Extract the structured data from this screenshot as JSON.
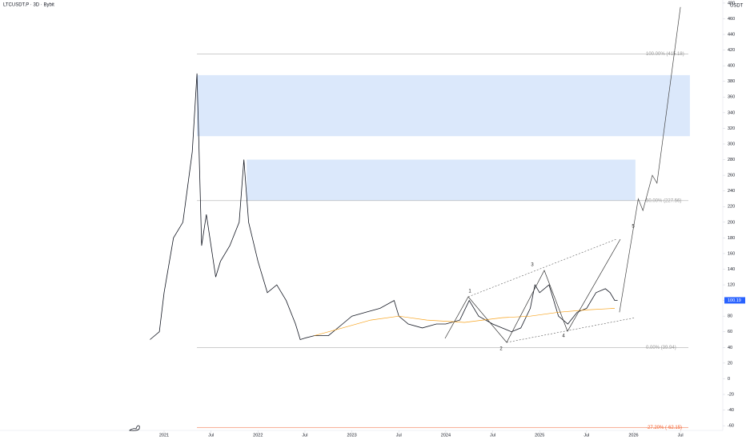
{
  "chart_data": {
    "type": "line",
    "title": "LTCUSDT.P · 3D · Bybit",
    "y_unit": "USDT",
    "xlim": [
      2020.65,
      2026.95
    ],
    "ylim": [
      -66,
      484
    ],
    "yticks": [
      -60,
      -40,
      -20,
      0,
      20,
      40,
      60,
      80,
      100,
      120,
      140,
      160,
      180,
      200,
      220,
      240,
      260,
      280,
      300,
      320,
      340,
      360,
      380,
      400,
      420,
      440,
      460,
      480
    ],
    "xticks": [
      {
        "value": 2021,
        "label": "2021"
      },
      {
        "value": 2021.5,
        "label": "Jul"
      },
      {
        "value": 2022,
        "label": "2022"
      },
      {
        "value": 2022.5,
        "label": "Jul"
      },
      {
        "value": 2023,
        "label": "2023"
      },
      {
        "value": 2023.5,
        "label": "Jul"
      },
      {
        "value": 2024,
        "label": "2024"
      },
      {
        "value": 2024.5,
        "label": "Jul"
      },
      {
        "value": 2025,
        "label": "2025"
      },
      {
        "value": 2025.5,
        "label": "Jul"
      },
      {
        "value": 2026,
        "label": "2026"
      },
      {
        "value": 2026.5,
        "label": "Jul"
      }
    ],
    "series": [
      {
        "color": "#131722",
        "x": [
          2020.85,
          2020.95,
          2021.0,
          2021.1,
          2021.2,
          2021.3,
          2021.35,
          2021.4,
          2021.45,
          2021.55,
          2021.6,
          2021.7,
          2021.8,
          2021.85,
          2021.9,
          2022.0,
          2022.1,
          2022.2,
          2022.3,
          2022.4,
          2022.45,
          2022.5,
          2022.6,
          2022.75,
          2022.9,
          2023.0,
          2023.15,
          2023.3,
          2023.45,
          2023.5,
          2023.6,
          2023.75,
          2023.9,
          2024.0,
          2024.15,
          2024.25,
          2024.35,
          2024.5,
          2024.6,
          2024.7,
          2024.8,
          2024.9,
          2024.95,
          2025.0,
          2025.1,
          2025.2,
          2025.3,
          2025.4,
          2025.5,
          2025.6,
          2025.7,
          2025.75,
          2025.8,
          2025.83
        ],
        "values": [
          50,
          60,
          110,
          180,
          200,
          290,
          390,
          170,
          210,
          130,
          150,
          170,
          200,
          280,
          200,
          150,
          110,
          120,
          100,
          70,
          50,
          52,
          55,
          55,
          70,
          80,
          85,
          90,
          100,
          80,
          70,
          65,
          70,
          70,
          75,
          100,
          80,
          70,
          65,
          60,
          65,
          90,
          120,
          110,
          120,
          80,
          70,
          85,
          90,
          110,
          115,
          110,
          100,
          100.19
        ]
      },
      {
        "color": "#f7a21b",
        "x": [
          2022.6,
          2022.9,
          2023.2,
          2023.5,
          2023.8,
          2024.2,
          2024.6,
          2024.9,
          2025.2,
          2025.5,
          2025.8
        ],
        "values": [
          55,
          65,
          75,
          80,
          75,
          72,
          78,
          80,
          85,
          88,
          90
        ]
      },
      {
        "color": "#444",
        "x": [
          2025.85,
          2026.05,
          2026.1,
          2026.2,
          2026.25,
          2026.5
        ],
        "values": [
          85,
          230,
          215,
          260,
          250,
          475
        ]
      }
    ],
    "last_price": {
      "value": 100.19,
      "label": "100.19"
    },
    "fib_levels": [
      {
        "value": 415.18,
        "label": "100.00% (415.18)",
        "color": "#999"
      },
      {
        "value": 227.56,
        "label": "50.00% (227.56)",
        "color": "#999"
      },
      {
        "value": 39.94,
        "label": "0.00% (39.94)",
        "color": "#999"
      },
      {
        "value": -62.15,
        "label": "-27.20% (-62.15)",
        "color": "#f2602e"
      }
    ],
    "zones": [
      {
        "ylim": [
          310,
          388
        ],
        "xlim": [
          2021.35,
          2026.6
        ],
        "color": "#dbe8fb"
      },
      {
        "ylim": [
          228,
          280
        ],
        "xlim": [
          2021.88,
          2026.02
        ],
        "color": "#dbe8fb"
      }
    ],
    "waves": [
      "1",
      "2",
      "3",
      "4",
      "5"
    ]
  }
}
